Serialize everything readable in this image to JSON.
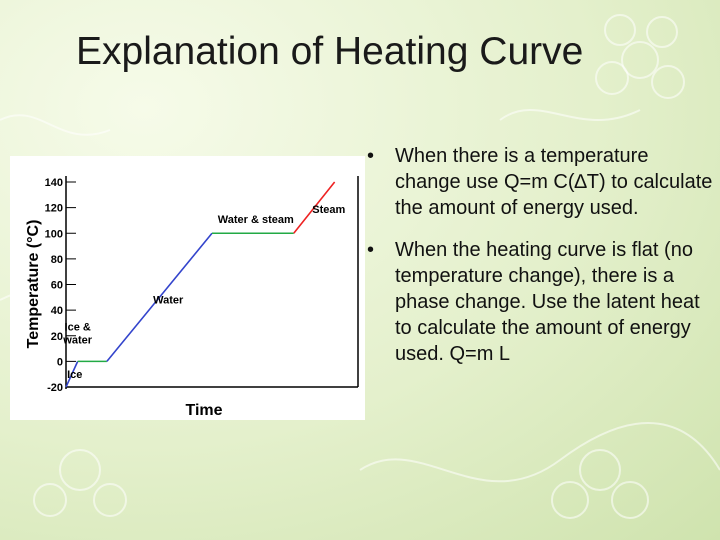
{
  "slide": {
    "title": "Explanation of Heating Curve",
    "bullet_symbol": "•",
    "bullets": [
      {
        "text": "When there is a temperature change use Q=m C(∆T) to calculate the amount of energy used."
      },
      {
        "text": "When the heating curve is flat (no temperature change), there is a phase change.  Use the latent heat to calculate the amount of energy used. Q=m L"
      }
    ]
  },
  "chart_data": {
    "type": "line",
    "title": "",
    "xlabel": "Time",
    "ylabel": "Temperature (°C)",
    "ylim": [
      -20,
      140
    ],
    "yticks": [
      "140",
      "120",
      "100",
      "80",
      "60",
      "40",
      "20",
      "0",
      "-20"
    ],
    "ytick_values": [
      140,
      120,
      100,
      80,
      60,
      40,
      20,
      0,
      -20
    ],
    "grid": false,
    "series": [
      {
        "key": "ice",
        "color": "#3344cc",
        "x": [
          0,
          4
        ],
        "y": [
          -20,
          0
        ]
      },
      {
        "key": "ice-water",
        "color": "#22aa44",
        "x": [
          4,
          14
        ],
        "y": [
          0,
          0
        ]
      },
      {
        "key": "water",
        "color": "#3344cc",
        "x": [
          14,
          50
        ],
        "y": [
          0,
          100
        ]
      },
      {
        "key": "water-steam",
        "color": "#22aa44",
        "x": [
          50,
          78
        ],
        "y": [
          100,
          100
        ]
      },
      {
        "key": "steam",
        "color": "#ee2222",
        "x": [
          78,
          92
        ],
        "y": [
          100,
          140
        ]
      }
    ],
    "annotations": [
      {
        "text": "Ice",
        "x": 3,
        "y": -13
      },
      {
        "text": "Ice &",
        "x": 4,
        "y": 24
      },
      {
        "text": "water",
        "x": 4,
        "y": 14
      },
      {
        "text": "Water",
        "x": 35,
        "y": 45
      },
      {
        "text": "Water & steam",
        "x": 65,
        "y": 108
      },
      {
        "text": "Steam",
        "x": 90,
        "y": 116
      }
    ]
  },
  "colors": {
    "background": "#e4f0cc",
    "chart_background": "#ffffff",
    "phase_change_line": "#22aa44",
    "heating_line": "#3344cc",
    "steam_line": "#ee2222"
  }
}
